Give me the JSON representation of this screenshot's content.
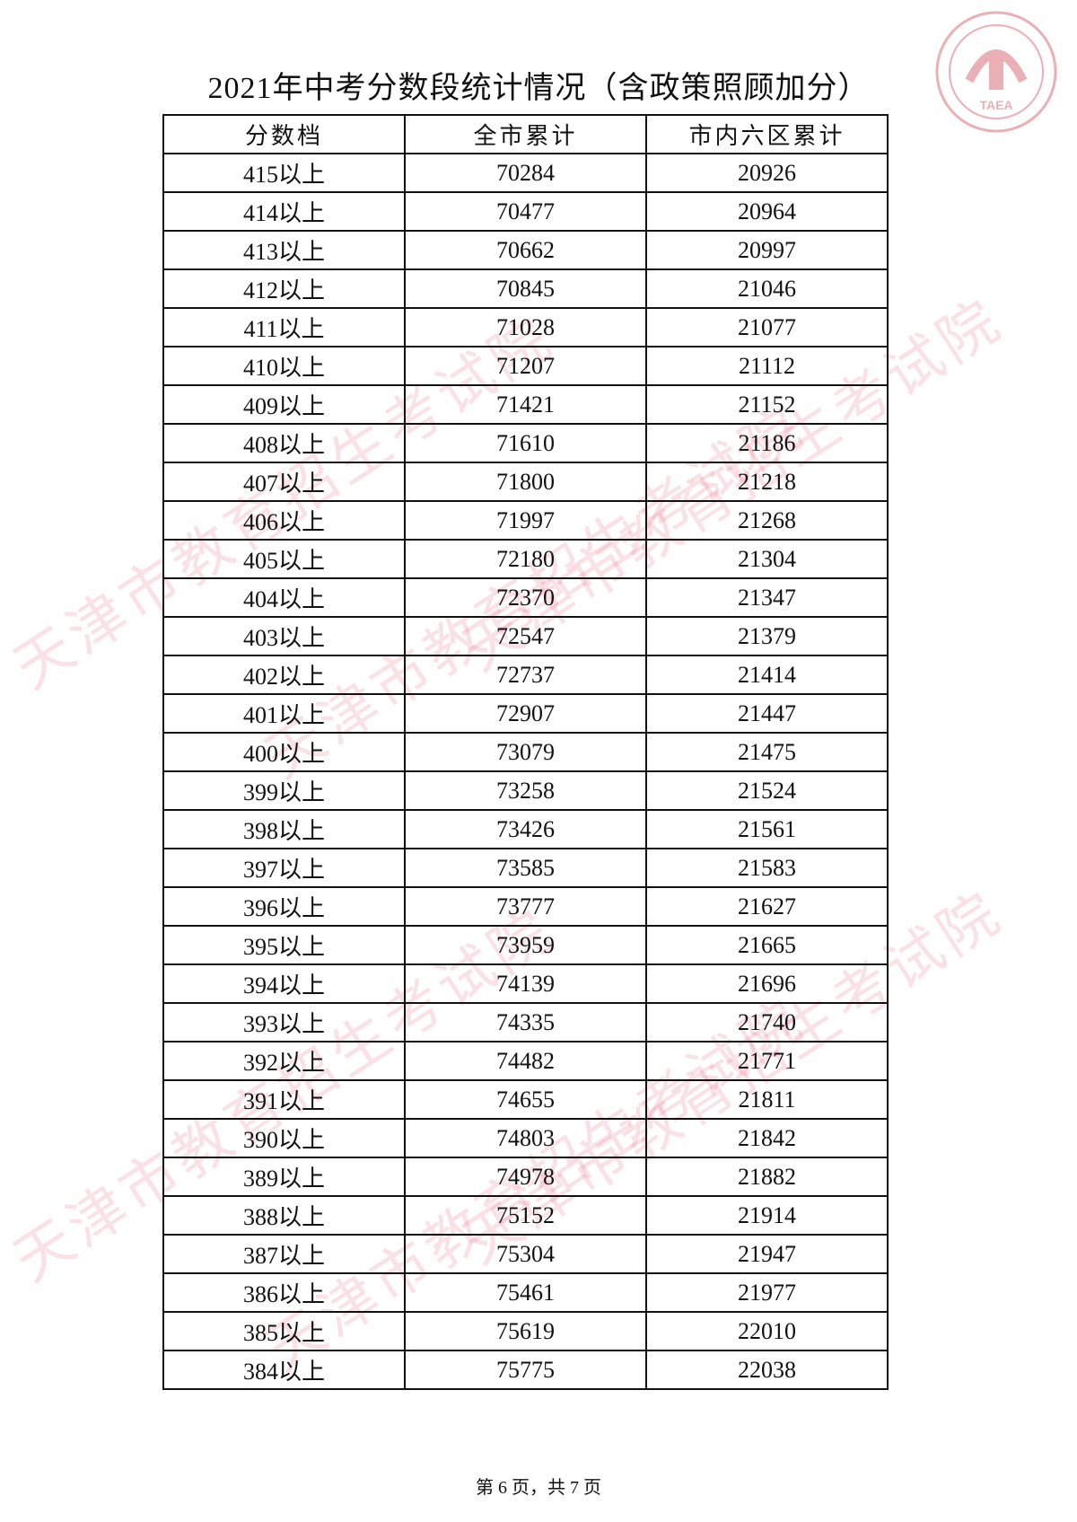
{
  "title": "2021年中考分数段统计情况（含政策照顾加分）",
  "watermark": "天津市教育招生考试院",
  "logo": {
    "text": "TAEA",
    "color": "#e8a0a8"
  },
  "table": {
    "headers": [
      "分数档",
      "全市累计",
      "市内六区累计"
    ],
    "rows": [
      [
        "415以上",
        "70284",
        "20926"
      ],
      [
        "414以上",
        "70477",
        "20964"
      ],
      [
        "413以上",
        "70662",
        "20997"
      ],
      [
        "412以上",
        "70845",
        "21046"
      ],
      [
        "411以上",
        "71028",
        "21077"
      ],
      [
        "410以上",
        "71207",
        "21112"
      ],
      [
        "409以上",
        "71421",
        "21152"
      ],
      [
        "408以上",
        "71610",
        "21186"
      ],
      [
        "407以上",
        "71800",
        "21218"
      ],
      [
        "406以上",
        "71997",
        "21268"
      ],
      [
        "405以上",
        "72180",
        "21304"
      ],
      [
        "404以上",
        "72370",
        "21347"
      ],
      [
        "403以上",
        "72547",
        "21379"
      ],
      [
        "402以上",
        "72737",
        "21414"
      ],
      [
        "401以上",
        "72907",
        "21447"
      ],
      [
        "400以上",
        "73079",
        "21475"
      ],
      [
        "399以上",
        "73258",
        "21524"
      ],
      [
        "398以上",
        "73426",
        "21561"
      ],
      [
        "397以上",
        "73585",
        "21583"
      ],
      [
        "396以上",
        "73777",
        "21627"
      ],
      [
        "395以上",
        "73959",
        "21665"
      ],
      [
        "394以上",
        "74139",
        "21696"
      ],
      [
        "393以上",
        "74335",
        "21740"
      ],
      [
        "392以上",
        "74482",
        "21771"
      ],
      [
        "391以上",
        "74655",
        "21811"
      ],
      [
        "390以上",
        "74803",
        "21842"
      ],
      [
        "389以上",
        "74978",
        "21882"
      ],
      [
        "388以上",
        "75152",
        "21914"
      ],
      [
        "387以上",
        "75304",
        "21947"
      ],
      [
        "386以上",
        "75461",
        "21977"
      ],
      [
        "385以上",
        "75619",
        "22010"
      ],
      [
        "384以上",
        "75775",
        "22038"
      ]
    ]
  },
  "footer": "第 6 页，共 7 页"
}
